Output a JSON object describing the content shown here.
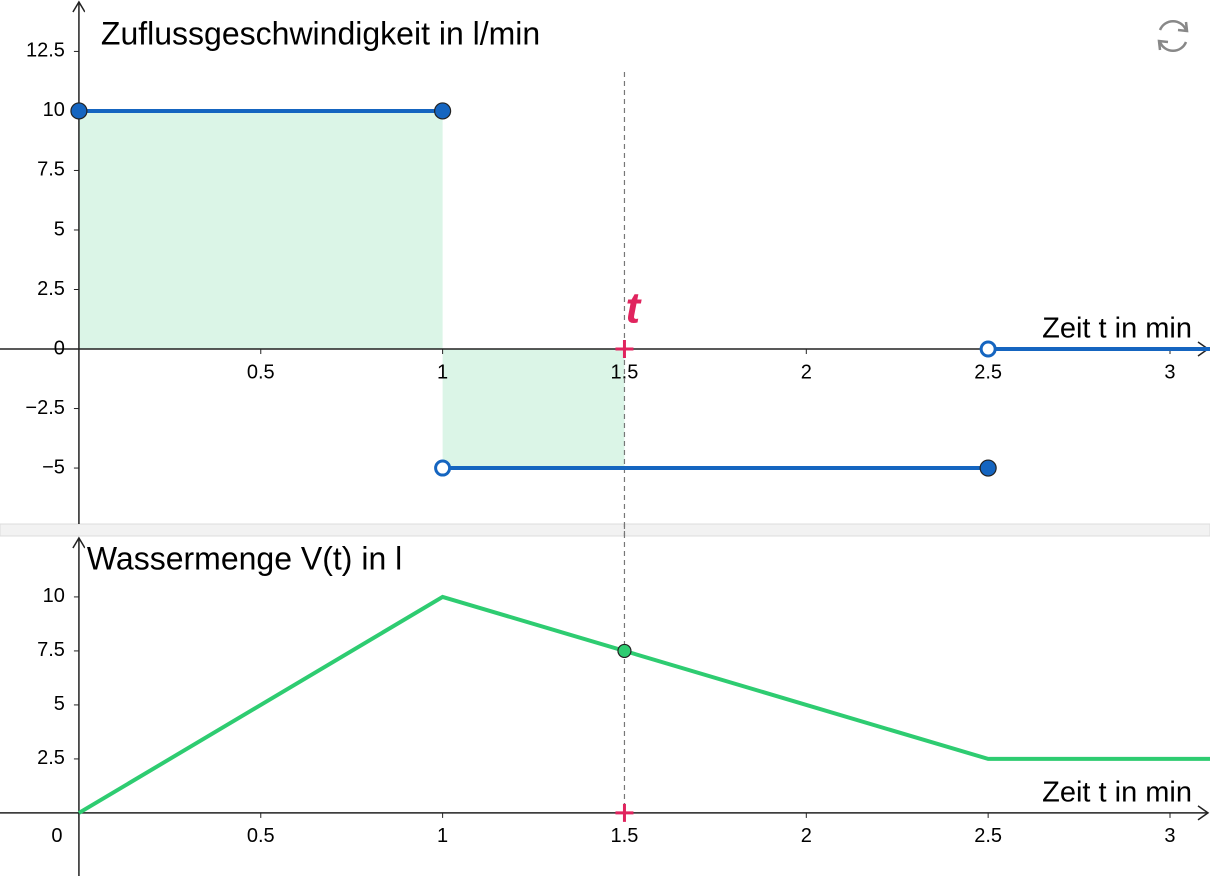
{
  "chart_data": [
    {
      "type": "line",
      "title": "Zuflussgeschwindigkeit in l/min",
      "x_label": "Zeit t in min",
      "xlim": [
        -0.217,
        3.11
      ],
      "ylim": [
        -7.35,
        14.66
      ],
      "xticks": [
        0.5,
        1,
        1.5,
        2,
        2.5,
        3
      ],
      "yticks": [
        {
          "value": -5,
          "label": "−5"
        },
        {
          "value": -2.5,
          "label": "−2.5"
        },
        0,
        2.5,
        5,
        7.5,
        10,
        12.5
      ],
      "series": [
        {
          "color": "#1565c0",
          "x": [
            0,
            1
          ],
          "values": [
            10,
            10
          ]
        },
        {
          "color": "#1565c0",
          "x": [
            1,
            2.5
          ],
          "values": [
            -5,
            -5
          ]
        },
        {
          "color": "#1565c0",
          "x": [
            2.5,
            3.11
          ],
          "values": [
            0,
            0
          ]
        }
      ],
      "points": [
        {
          "x": 0,
          "y": 10,
          "open": false
        },
        {
          "x": 1,
          "y": 10,
          "open": false
        },
        {
          "x": 1,
          "y": -5,
          "open": true
        },
        {
          "x": 2.5,
          "y": -5,
          "open": false
        },
        {
          "x": 2.5,
          "y": 0,
          "open": true
        }
      ],
      "area": {
        "color": "#dbf5e7",
        "x": [
          0,
          1,
          1,
          1.5
        ],
        "values": [
          10,
          10,
          -5,
          -5
        ]
      },
      "marker": {
        "x": 1.5,
        "y": 0,
        "label": "t",
        "color": "#e0245e"
      }
    },
    {
      "type": "line",
      "title": "Wassermenge V(t) in l",
      "x_label": "Zeit t in min",
      "xlim": [
        -0.217,
        3.11
      ],
      "ylim": [
        -2.92,
        12.82
      ],
      "xticks": [
        0,
        0.5,
        1,
        1.5,
        2,
        2.5,
        3
      ],
      "yticks": [
        2.5,
        5,
        7.5,
        10
      ],
      "series": [
        {
          "color": "#2ecc71",
          "x": [
            0,
            1,
            2.5,
            3.11
          ],
          "values": [
            0,
            10,
            2.5,
            2.5
          ]
        }
      ],
      "points": [
        {
          "x": 1.5,
          "y": 7.5,
          "open": false,
          "color": "#2ecc71"
        }
      ],
      "marker": {
        "x": 1.5,
        "y": 0,
        "color": "#e0245e"
      }
    }
  ]
}
